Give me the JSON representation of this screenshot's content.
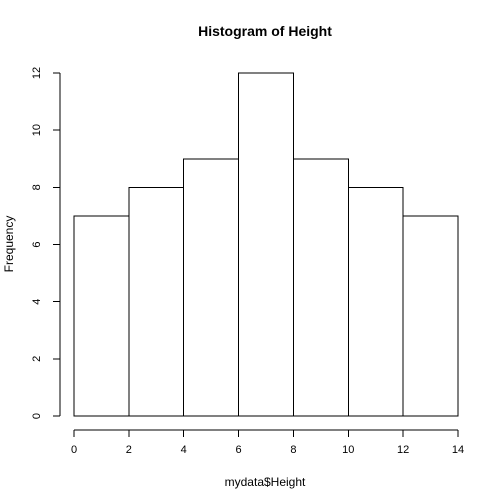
{
  "chart_data": {
    "type": "bar",
    "subtype": "histogram",
    "title": "Histogram of Height",
    "xlabel": "mydata$Height",
    "ylabel": "Frequency",
    "bins": [
      {
        "from": 0,
        "to": 2,
        "count": 7
      },
      {
        "from": 2,
        "to": 4,
        "count": 8
      },
      {
        "from": 4,
        "to": 6,
        "count": 9
      },
      {
        "from": 6,
        "to": 8,
        "count": 12
      },
      {
        "from": 8,
        "to": 10,
        "count": 9
      },
      {
        "from": 10,
        "to": 12,
        "count": 8
      },
      {
        "from": 12,
        "to": 14,
        "count": 7
      }
    ],
    "xlim": [
      0,
      14
    ],
    "ylim": [
      0,
      12
    ],
    "xticks": [
      0,
      2,
      4,
      6,
      8,
      10,
      12,
      14
    ],
    "yticks": [
      0,
      2,
      4,
      6,
      8,
      10,
      12
    ],
    "grid": false,
    "legend": "none",
    "colors": {
      "bar_fill": "#ffffff",
      "bar_stroke": "#000000",
      "axis": "#000000"
    }
  }
}
